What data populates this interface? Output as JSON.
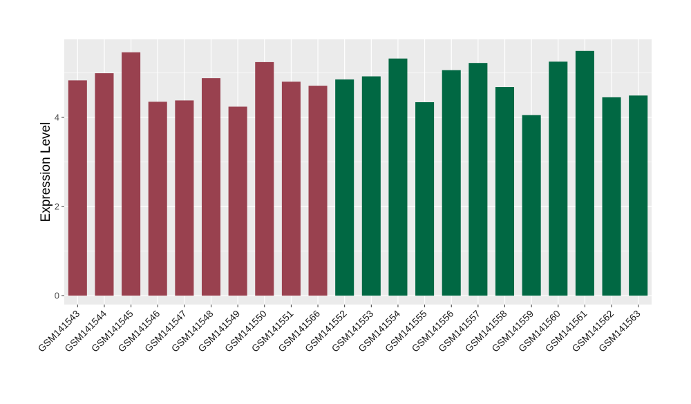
{
  "chart_data": {
    "type": "bar",
    "title": "",
    "xlabel": "",
    "ylabel": "Expression Level",
    "ylim": [
      -0.2,
      5.75
    ],
    "yticks": [
      0,
      2,
      4
    ],
    "grid": true,
    "categories": [
      "GSM141543",
      "GSM141544",
      "GSM141545",
      "GSM141546",
      "GSM141547",
      "GSM141548",
      "GSM141549",
      "GSM141550",
      "GSM141551",
      "GSM141566",
      "GSM141552",
      "GSM141553",
      "GSM141554",
      "GSM141555",
      "GSM141556",
      "GSM141557",
      "GSM141558",
      "GSM141559",
      "GSM141560",
      "GSM141561",
      "GSM141562",
      "GSM141563"
    ],
    "values": [
      4.83,
      4.99,
      5.46,
      4.35,
      4.38,
      4.88,
      4.24,
      5.24,
      4.8,
      4.71,
      4.85,
      4.92,
      5.32,
      4.34,
      5.06,
      5.22,
      4.68,
      4.05,
      5.25,
      5.49,
      4.45,
      4.49
    ],
    "groups": [
      0,
      0,
      0,
      0,
      0,
      0,
      0,
      0,
      0,
      0,
      1,
      1,
      1,
      1,
      1,
      1,
      1,
      1,
      1,
      1,
      1,
      1
    ],
    "colors": [
      "#99414f",
      "#016843"
    ],
    "panel_background": "#ebebeb",
    "gridline_color": "#ffffff"
  }
}
